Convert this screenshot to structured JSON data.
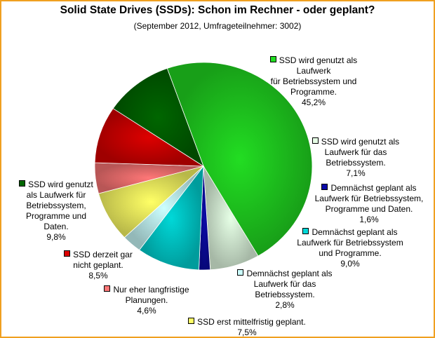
{
  "chart_data": {
    "type": "pie",
    "title": "Solid State Drives (SSDs): Schon im Rechner - oder geplant?",
    "subtitle": "(September 2012, Umfrageteilnehmer: 3002)",
    "slices": [
      {
        "label": "SSD wird genutzt als Laufwerk\nfür Betriebssystem und\nProgramme.",
        "value": 45.2,
        "display": "45,2%",
        "color": "#22dd22"
      },
      {
        "label": "SSD wird genutzt als\nLaufwerk für das\nBetriebssystem.",
        "value": 7.1,
        "display": "7,1%",
        "color": "#e6ffe6"
      },
      {
        "label": "Demnächst geplant als\nLaufwerk für Betriebssystem,\nProgramme und Daten.",
        "value": 1.6,
        "display": "1,6%",
        "color": "#0a0aa8"
      },
      {
        "label": "Demnächst geplant als\nLaufwerk für Betriebssystem\nund Programme.",
        "value": 9.0,
        "display": "9,0%",
        "color": "#00d8d8"
      },
      {
        "label": "Demnächst geplant als\nLaufwerk für das\nBetriebssystem.",
        "value": 2.8,
        "display": "2,8%",
        "color": "#ccffff"
      },
      {
        "label": "SSD erst mittelfristig geplant.",
        "value": 7.5,
        "display": "7,5%",
        "color": "#ffff66"
      },
      {
        "label": "Nur eher langfristige\nPlanungen.",
        "value": 4.6,
        "display": "4,6%",
        "color": "#ff7777"
      },
      {
        "label": "SSD derzeit gar\nnicht geplant.",
        "value": 8.5,
        "display": "8,5%",
        "color": "#dd0000"
      },
      {
        "label": "SSD wird genutzt\nals Laufwerk für\nBetriebssystem,\nProgramme und\nDaten.",
        "value": 9.8,
        "display": "9,8%",
        "color": "#006600"
      }
    ]
  }
}
